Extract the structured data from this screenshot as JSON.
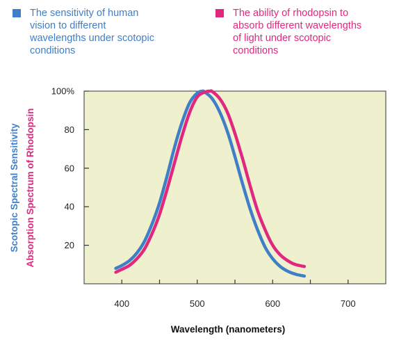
{
  "colors": {
    "blue": "#3f7fc8",
    "magenta": "#e0287e",
    "plot_bg": "#eff0cd",
    "axis": "#333333"
  },
  "legend": [
    {
      "series": "scotopic",
      "color": "#3f7fc8",
      "lines": [
        "The sensitivity of human",
        "vision to different",
        "wavelengths under scotopic",
        "conditions"
      ]
    },
    {
      "series": "rhodopsin",
      "color": "#e0287e",
      "lines": [
        "The ability of rhodopsin to",
        "absorb different wavelengths",
        "of light under scotopic",
        "conditions"
      ]
    }
  ],
  "chart_data": {
    "type": "line",
    "xlabel": "Wavelength (nanometers)",
    "ylabels": [
      {
        "text": "Scotopic Spectral Sensitivity",
        "color": "#3f7fc8"
      },
      {
        "text": "Absorption Spectrum of Rhodopsin",
        "color": "#e0287e"
      }
    ],
    "xlim": [
      350,
      750
    ],
    "ylim": [
      0,
      100
    ],
    "xticks": [
      400,
      500,
      600,
      700
    ],
    "yticks": [
      20,
      40,
      60,
      80,
      100
    ],
    "ytick_labels": [
      "20",
      "40",
      "60",
      "80",
      "100%"
    ],
    "grid": false,
    "series": [
      {
        "name": "The sensitivity of human vision to different wavelengths under scotopic conditions",
        "color": "#3f7fc8",
        "x": [
          392,
          400,
          410,
          420,
          430,
          440,
          450,
          460,
          470,
          480,
          490,
          500,
          507,
          510,
          520,
          530,
          540,
          550,
          560,
          570,
          580,
          590,
          600,
          610,
          620,
          630,
          642
        ],
        "y": [
          8,
          9.5,
          12,
          16,
          22,
          31,
          42,
          56,
          71,
          84,
          94,
          99,
          100,
          99.5,
          96,
          89,
          79,
          66,
          52,
          39,
          28,
          19,
          13,
          9,
          6.5,
          5,
          4
        ]
      },
      {
        "name": "The ability of rhodopsin to absorb different wavelengths of light under scotopic conditions",
        "color": "#e0287e",
        "x": [
          392,
          400,
          410,
          420,
          430,
          440,
          450,
          460,
          470,
          480,
          490,
          500,
          510,
          517,
          520,
          530,
          540,
          550,
          560,
          570,
          580,
          590,
          600,
          610,
          620,
          630,
          642
        ],
        "y": [
          6,
          7.5,
          9.5,
          13,
          18,
          26,
          36,
          49,
          63,
          77,
          89,
          97,
          99.5,
          100,
          99.8,
          96,
          89,
          78,
          65,
          51,
          38,
          28,
          20,
          15,
          12,
          10,
          9
        ]
      }
    ]
  }
}
